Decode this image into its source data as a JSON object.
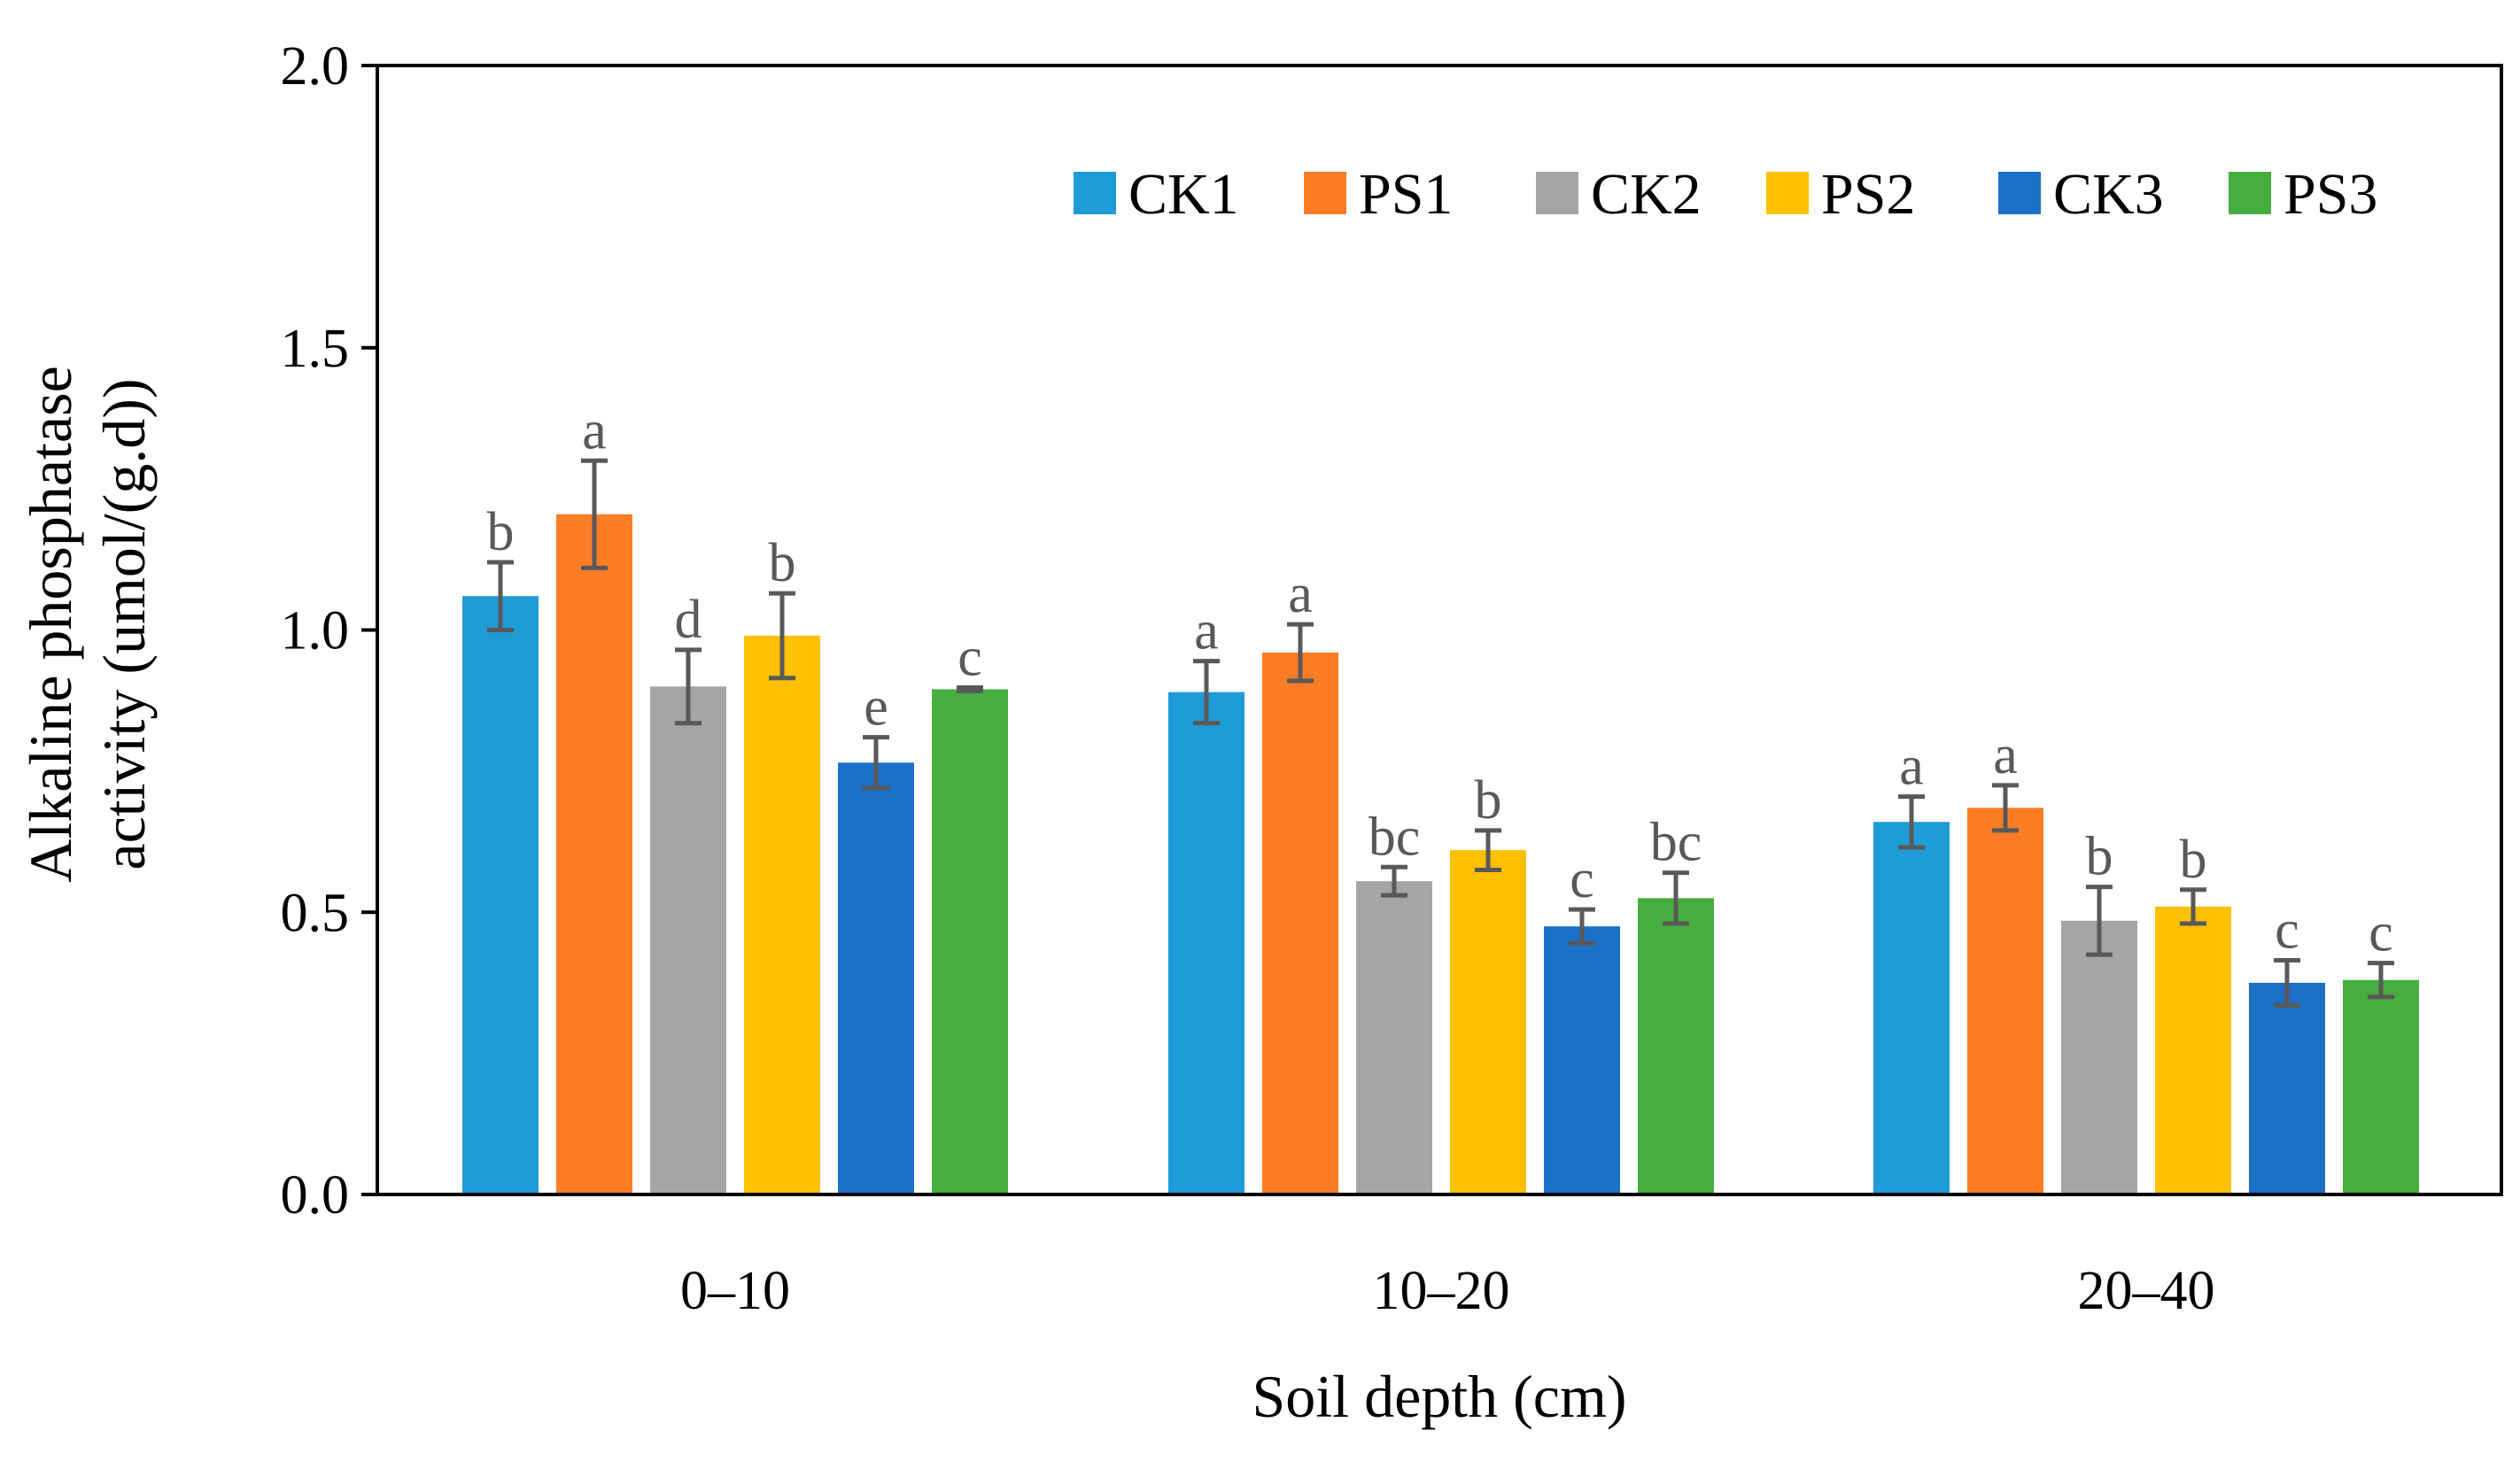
{
  "chart_data": {
    "type": "bar",
    "xlabel": "Soil depth (cm)",
    "ylabel_lines": [
      "Alkaline phosphatase",
      "activity (umol/(g.d))"
    ],
    "ylim": [
      0,
      2.0
    ],
    "yticks": [
      "0.0",
      "0.5",
      "1.0",
      "1.5",
      "2.0"
    ],
    "yticks_values": [
      0,
      0.5,
      1.0,
      1.5,
      2.0
    ],
    "categories": [
      "0–10",
      "10–20",
      "20–40"
    ],
    "legend_position": "top-right",
    "grid": false,
    "series": [
      {
        "name": "CK1",
        "color": "#1f9bd7",
        "values": [
          1.06,
          0.89,
          0.66
        ],
        "errors": [
          0.06,
          0.055,
          0.045
        ],
        "labels": [
          "b",
          "a",
          "a"
        ]
      },
      {
        "name": "PS1",
        "color": "#fb7d26",
        "values": [
          1.205,
          0.96,
          0.685
        ],
        "errors": [
          0.095,
          0.05,
          0.04
        ],
        "labels": [
          "a",
          "a",
          "a"
        ]
      },
      {
        "name": "CK2",
        "color": "#a5a5a5",
        "values": [
          0.9,
          0.555,
          0.485
        ],
        "errors": [
          0.065,
          0.025,
          0.06
        ],
        "labels": [
          "d",
          "bc",
          "b"
        ]
      },
      {
        "name": "PS2",
        "color": "#ffc000",
        "values": [
          0.99,
          0.61,
          0.51
        ],
        "errors": [
          0.075,
          0.035,
          0.03
        ],
        "labels": [
          "b",
          "b",
          "b"
        ]
      },
      {
        "name": "CK3",
        "color": "#1a71c7",
        "values": [
          0.765,
          0.475,
          0.375
        ],
        "errors": [
          0.045,
          0.03,
          0.04
        ],
        "labels": [
          "e",
          "c",
          "c"
        ]
      },
      {
        "name": "PS3",
        "color": "#46ae3e",
        "values": [
          0.895,
          0.525,
          0.38
        ],
        "errors": [
          0.003,
          0.045,
          0.03
        ],
        "labels": [
          "c",
          "bc",
          "c"
        ]
      }
    ]
  }
}
